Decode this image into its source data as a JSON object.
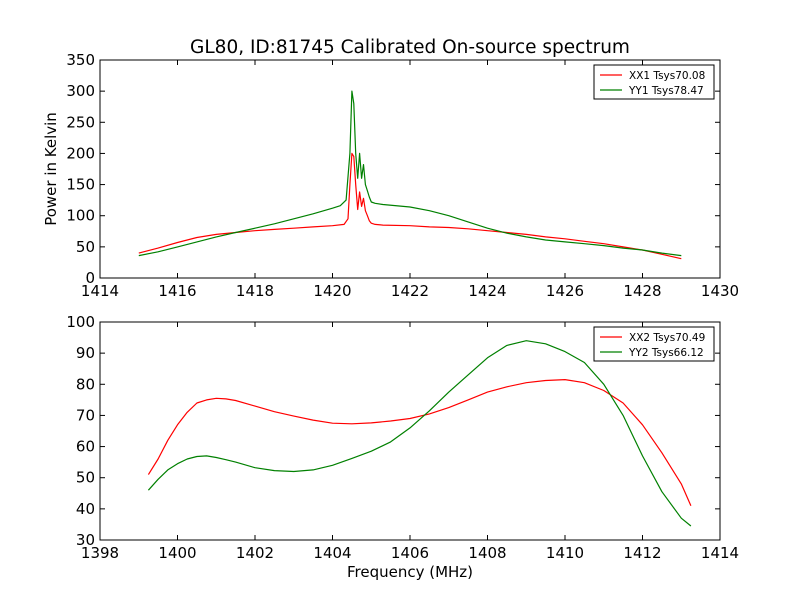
{
  "title": "GL80, ID:81745 Calibrated On-source spectrum",
  "colors": {
    "xx": "#ff0000",
    "yy": "#008000"
  },
  "chart_data": [
    {
      "type": "line",
      "ylabel": "Power in Kelvin",
      "xlabel": "",
      "xlim": [
        1414,
        1430
      ],
      "ylim": [
        0,
        350
      ],
      "xticks": [
        1414,
        1416,
        1418,
        1420,
        1422,
        1424,
        1426,
        1428,
        1430
      ],
      "yticks": [
        0,
        50,
        100,
        150,
        200,
        250,
        300,
        350
      ],
      "legend": "top-right",
      "series": [
        {
          "name": "XX1 Tsys70.08",
          "color": "#ff0000",
          "x": [
            1415.0,
            1415.5,
            1416.0,
            1416.5,
            1417.0,
            1417.5,
            1418.0,
            1418.5,
            1419.0,
            1419.5,
            1420.0,
            1420.3,
            1420.4,
            1420.45,
            1420.5,
            1420.55,
            1420.6,
            1420.65,
            1420.7,
            1420.75,
            1420.8,
            1420.85,
            1420.9,
            1420.95,
            1421.0,
            1421.1,
            1421.3,
            1422.0,
            1422.5,
            1423.0,
            1423.5,
            1424.0,
            1424.5,
            1425.0,
            1425.5,
            1426.0,
            1426.5,
            1427.0,
            1427.5,
            1428.0,
            1428.5,
            1429.0
          ],
          "y": [
            40,
            48,
            57,
            65,
            70,
            73,
            76,
            78,
            80,
            82,
            84,
            86,
            95,
            150,
            200,
            195,
            150,
            110,
            138,
            115,
            128,
            108,
            100,
            92,
            88,
            86,
            85,
            84,
            82,
            81,
            79,
            76,
            73,
            70,
            66,
            63,
            59,
            55,
            50,
            45,
            38,
            31
          ]
        },
        {
          "name": "YY1 Tsys78.47",
          "color": "#008000",
          "x": [
            1415.0,
            1415.5,
            1416.0,
            1416.5,
            1417.0,
            1417.5,
            1418.0,
            1418.5,
            1419.0,
            1419.5,
            1420.0,
            1420.2,
            1420.35,
            1420.45,
            1420.5,
            1420.55,
            1420.6,
            1420.65,
            1420.7,
            1420.75,
            1420.8,
            1420.85,
            1420.9,
            1420.95,
            1421.0,
            1421.1,
            1421.3,
            1422.0,
            1422.5,
            1423.0,
            1423.5,
            1424.0,
            1424.5,
            1425.0,
            1425.5,
            1426.0,
            1426.5,
            1427.0,
            1427.5,
            1428.0,
            1428.5,
            1429.0
          ],
          "y": [
            36,
            42,
            50,
            58,
            66,
            73,
            80,
            87,
            95,
            103,
            112,
            116,
            125,
            200,
            300,
            280,
            200,
            160,
            200,
            160,
            182,
            150,
            140,
            130,
            122,
            120,
            118,
            114,
            108,
            100,
            90,
            80,
            72,
            66,
            61,
            58,
            55,
            52,
            48,
            45,
            40,
            36
          ]
        }
      ]
    },
    {
      "type": "line",
      "ylabel": "",
      "xlabel": "Frequency (MHz)",
      "xlim": [
        1398,
        1414
      ],
      "ylim": [
        30,
        100
      ],
      "xticks": [
        1398,
        1400,
        1402,
        1404,
        1406,
        1408,
        1410,
        1412,
        1414
      ],
      "yticks": [
        30,
        40,
        50,
        60,
        70,
        80,
        90,
        100
      ],
      "legend": "top-right",
      "series": [
        {
          "name": "XX2 Tsys70.49",
          "color": "#ff0000",
          "x": [
            1399.25,
            1399.5,
            1399.75,
            1400.0,
            1400.25,
            1400.5,
            1400.75,
            1401.0,
            1401.25,
            1401.5,
            1402.0,
            1402.5,
            1403.0,
            1403.5,
            1404.0,
            1404.5,
            1405.0,
            1405.5,
            1406.0,
            1406.5,
            1407.0,
            1407.5,
            1408.0,
            1408.5,
            1409.0,
            1409.5,
            1410.0,
            1410.5,
            1411.0,
            1411.5,
            1412.0,
            1412.5,
            1413.0,
            1413.25
          ],
          "y": [
            51,
            56,
            62,
            67,
            71,
            74,
            75,
            75.5,
            75.3,
            74.8,
            73,
            71.2,
            69.8,
            68.5,
            67.5,
            67.3,
            67.6,
            68.2,
            69,
            70.5,
            72.5,
            75,
            77.5,
            79.2,
            80.5,
            81.2,
            81.5,
            80.5,
            78,
            74,
            67,
            58,
            48,
            41
          ]
        },
        {
          "name": "YY2 Tsys66.12",
          "color": "#008000",
          "x": [
            1399.25,
            1399.5,
            1399.75,
            1400.0,
            1400.25,
            1400.5,
            1400.75,
            1401.0,
            1401.25,
            1401.5,
            1402.0,
            1402.5,
            1403.0,
            1403.5,
            1404.0,
            1404.5,
            1405.0,
            1405.5,
            1406.0,
            1406.5,
            1407.0,
            1407.5,
            1408.0,
            1408.5,
            1409.0,
            1409.5,
            1410.0,
            1410.5,
            1411.0,
            1411.5,
            1412.0,
            1412.5,
            1413.0,
            1413.25
          ],
          "y": [
            46,
            49.5,
            52.5,
            54.5,
            56,
            56.8,
            57,
            56.5,
            55.8,
            55,
            53.2,
            52.3,
            52,
            52.5,
            54,
            56.2,
            58.5,
            61.5,
            66,
            71.5,
            77.5,
            83,
            88.5,
            92.5,
            94,
            93,
            90.5,
            87,
            80,
            70,
            57,
            45.5,
            37,
            34.5
          ]
        }
      ]
    }
  ]
}
